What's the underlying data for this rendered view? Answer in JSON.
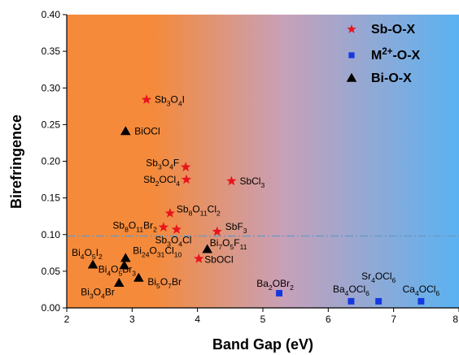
{
  "chart_data": {
    "type": "scatter",
    "xlabel": "Band Gap (eV)",
    "ylabel": "Birefringence",
    "xlim": [
      2,
      8
    ],
    "ylim": [
      0,
      0.4
    ],
    "xticks": [
      "2",
      "3",
      "4",
      "5",
      "6",
      "7",
      "8"
    ],
    "yticks": [
      "0.00",
      "0.05",
      "0.10",
      "0.15",
      "0.20",
      "0.25",
      "0.30",
      "0.35",
      "0.40"
    ],
    "background": {
      "left_color": "#f58a3a",
      "middle_color": "#c8a0b8",
      "right_color": "#5ab2f2"
    },
    "reference_line": {
      "y": 0.098,
      "color": "#6a9ac4",
      "style": "dash-dot"
    },
    "legend": {
      "position": "top-right"
    },
    "series": [
      {
        "name": "Sb-O-X",
        "marker": "star",
        "color": "#e8141c",
        "points": [
          {
            "x": 3.22,
            "y": 0.284,
            "label": [
              [
                "Sb",
                ""
              ],
              [
                "3",
                "sub"
              ],
              [
                "O",
                ""
              ],
              [
                "4",
                "sub"
              ],
              [
                "I",
                ""
              ]
            ]
          },
          {
            "x": 3.82,
            "y": 0.192,
            "label": [
              [
                "Sb",
                ""
              ],
              [
                "3",
                "sub"
              ],
              [
                "O",
                ""
              ],
              [
                "4",
                "sub"
              ],
              [
                "F",
                ""
              ]
            ]
          },
          {
            "x": 3.83,
            "y": 0.175,
            "label": [
              [
                "Sb",
                ""
              ],
              [
                "2",
                "sub"
              ],
              [
                "OCl",
                ""
              ],
              [
                "4",
                "sub"
              ]
            ]
          },
          {
            "x": 4.52,
            "y": 0.173,
            "label": [
              [
                "SbCl",
                ""
              ],
              [
                "3",
                "sub"
              ]
            ]
          },
          {
            "x": 3.58,
            "y": 0.129,
            "label": [
              [
                "Sb",
                ""
              ],
              [
                "8",
                "sub"
              ],
              [
                "O",
                ""
              ],
              [
                "11",
                "sub"
              ],
              [
                "Cl",
                ""
              ],
              [
                "2",
                "sub"
              ]
            ]
          },
          {
            "x": 3.48,
            "y": 0.11,
            "label": [
              [
                "Sb",
                ""
              ],
              [
                "8",
                "sub"
              ],
              [
                "O",
                ""
              ],
              [
                "11",
                "sub"
              ],
              [
                "Br",
                ""
              ],
              [
                "2",
                "sub"
              ]
            ]
          },
          {
            "x": 3.68,
            "y": 0.107,
            "label": [
              [
                "Sb",
                ""
              ],
              [
                "3",
                "sub"
              ],
              [
                "O",
                ""
              ],
              [
                "4",
                "sub"
              ],
              [
                "Cl",
                ""
              ]
            ]
          },
          {
            "x": 4.3,
            "y": 0.104,
            "label": [
              [
                "SbF",
                ""
              ],
              [
                "3",
                "sub"
              ]
            ]
          },
          {
            "x": 4.02,
            "y": 0.067,
            "label": [
              [
                "SbOCl",
                ""
              ]
            ]
          }
        ]
      },
      {
        "name": "M2+-O-X",
        "legend_label": [
          [
            "M",
            ""
          ],
          [
            "2+",
            "sup"
          ],
          [
            "-O-X",
            ""
          ]
        ],
        "marker": "square",
        "color": "#1438e0",
        "points": [
          {
            "x": 5.25,
            "y": 0.02,
            "label": [
              [
                "Ba",
                ""
              ],
              [
                "2",
                "sub"
              ],
              [
                "OBr",
                ""
              ],
              [
                "2",
                "sub"
              ]
            ]
          },
          {
            "x": 6.35,
            "y": 0.009,
            "label": [
              [
                "Ba",
                ""
              ],
              [
                "4",
                "sub"
              ],
              [
                "OCl",
                ""
              ],
              [
                "6",
                "sub"
              ]
            ]
          },
          {
            "x": 6.77,
            "y": 0.009,
            "label": [
              [
                "Sr",
                ""
              ],
              [
                "4",
                "sub"
              ],
              [
                "OCl",
                ""
              ],
              [
                "6",
                "sub"
              ]
            ]
          },
          {
            "x": 7.42,
            "y": 0.009,
            "label": [
              [
                "Ca",
                ""
              ],
              [
                "4",
                "sub"
              ],
              [
                "OCl",
                ""
              ],
              [
                "6",
                "sub"
              ]
            ]
          }
        ]
      },
      {
        "name": "Bi-O-X",
        "marker": "triangle",
        "color": "#000000",
        "points": [
          {
            "x": 2.9,
            "y": 0.241,
            "label": [
              [
                "BiOCl",
                ""
              ]
            ]
          },
          {
            "x": 2.4,
            "y": 0.059,
            "label": [
              [
                "Bi",
                ""
              ],
              [
                "4",
                "sub"
              ],
              [
                "O",
                ""
              ],
              [
                "5",
                "sub"
              ],
              [
                "I",
                ""
              ],
              [
                "2",
                "sub"
              ]
            ]
          },
          {
            "x": 2.9,
            "y": 0.068,
            "label": [
              [
                "Bi",
                ""
              ],
              [
                "24",
                "sub"
              ],
              [
                "O",
                ""
              ],
              [
                "31",
                "sub"
              ],
              [
                "Cl",
                ""
              ],
              [
                "10",
                "sub"
              ]
            ]
          },
          {
            "x": 2.88,
            "y": 0.058,
            "label": [
              [
                "Bi",
                ""
              ],
              [
                "4",
                "sub"
              ],
              [
                "O",
                ""
              ],
              [
                "5",
                "sub"
              ],
              [
                "Br",
                ""
              ],
              [
                "3",
                "sub"
              ]
            ]
          },
          {
            "x": 2.8,
            "y": 0.034,
            "label": [
              [
                "Bi",
                ""
              ],
              [
                "3",
                "sub"
              ],
              [
                "O",
                ""
              ],
              [
                "4",
                "sub"
              ],
              [
                "Br",
                ""
              ]
            ]
          },
          {
            "x": 3.1,
            "y": 0.041,
            "label": [
              [
                "Bi",
                ""
              ],
              [
                "5",
                "sub"
              ],
              [
                "O",
                ""
              ],
              [
                "7",
                "sub"
              ],
              [
                "Br",
                ""
              ]
            ]
          },
          {
            "x": 4.15,
            "y": 0.08,
            "label": [
              [
                "Bi",
                ""
              ],
              [
                "7",
                "sub"
              ],
              [
                "O",
                ""
              ],
              [
                "5",
                "sub"
              ],
              [
                "F",
                ""
              ],
              [
                "11",
                "sub"
              ]
            ]
          }
        ]
      }
    ]
  }
}
